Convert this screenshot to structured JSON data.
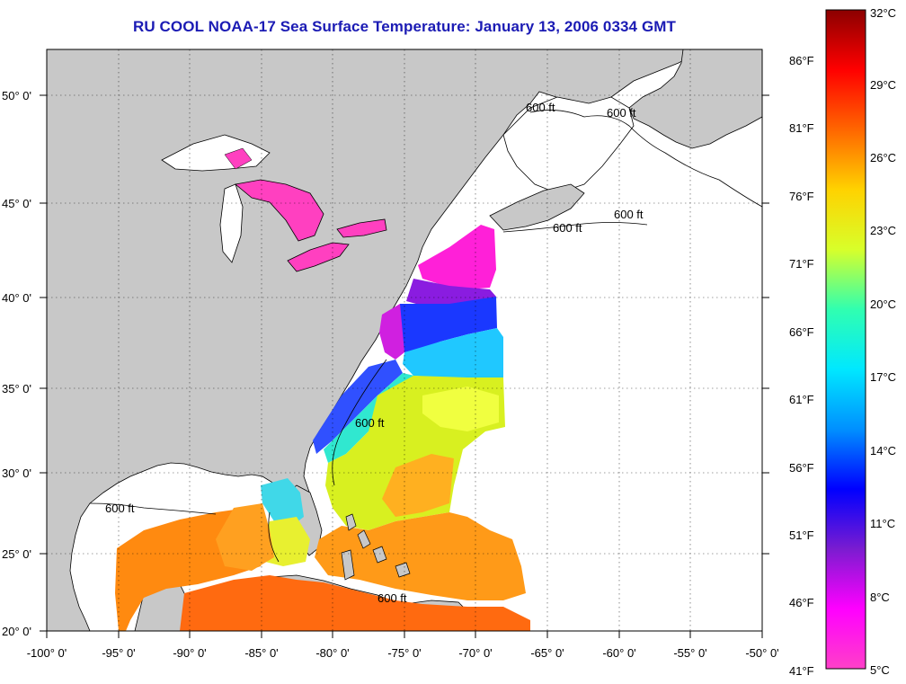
{
  "title": "RU COOL  NOAA-17  Sea Surface Temperature:  January 13, 2006 0334 GMT",
  "colors": {
    "land": "#c8c8c8",
    "no_data": "#ffffff",
    "coast": "#000000",
    "title": "#1b1bb4"
  },
  "axes": {
    "lon_ticks": [
      "-100° 0'",
      "-95° 0'",
      "-90° 0'",
      "-85° 0'",
      "-80° 0'",
      "-75° 0'",
      "-70° 0'",
      "-65° 0'",
      "-60° 0'",
      "-55° 0'",
      "-50° 0'"
    ],
    "lat_ticks": [
      "50° 0'",
      "45° 0'",
      "40° 0'",
      "35° 0'",
      "30° 0'",
      "25° 0'",
      "20° 0'"
    ],
    "grid": true
  },
  "contour_label": "600 ft",
  "colorbar": {
    "fahrenheit": [
      "86°F",
      "81°F",
      "76°F",
      "71°F",
      "66°F",
      "61°F",
      "56°F",
      "51°F",
      "46°F",
      "41°F"
    ],
    "celsius": [
      "32°C",
      "29°C",
      "26°C",
      "23°C",
      "20°C",
      "17°C",
      "14°C",
      "11°C",
      "8°C",
      "5°C"
    ],
    "stops": [
      "#8b0000",
      "#ff0000",
      "#ff6600",
      "#ffd200",
      "#d8ff2a",
      "#30ffb0",
      "#00e8ff",
      "#0090ff",
      "#0000ff",
      "#7a1cd0",
      "#ff00ff",
      "#ff40c8"
    ]
  },
  "chart_data": {
    "type": "heatmap",
    "title": "RU COOL  NOAA-17  Sea Surface Temperature:  January 13, 2006 0334 GMT",
    "x_range_deg": [
      -100,
      -50
    ],
    "y_range_deg": [
      20,
      52.5
    ],
    "temperature_range_C": [
      5,
      32
    ],
    "temperature_range_F": [
      41,
      90
    ]
  }
}
